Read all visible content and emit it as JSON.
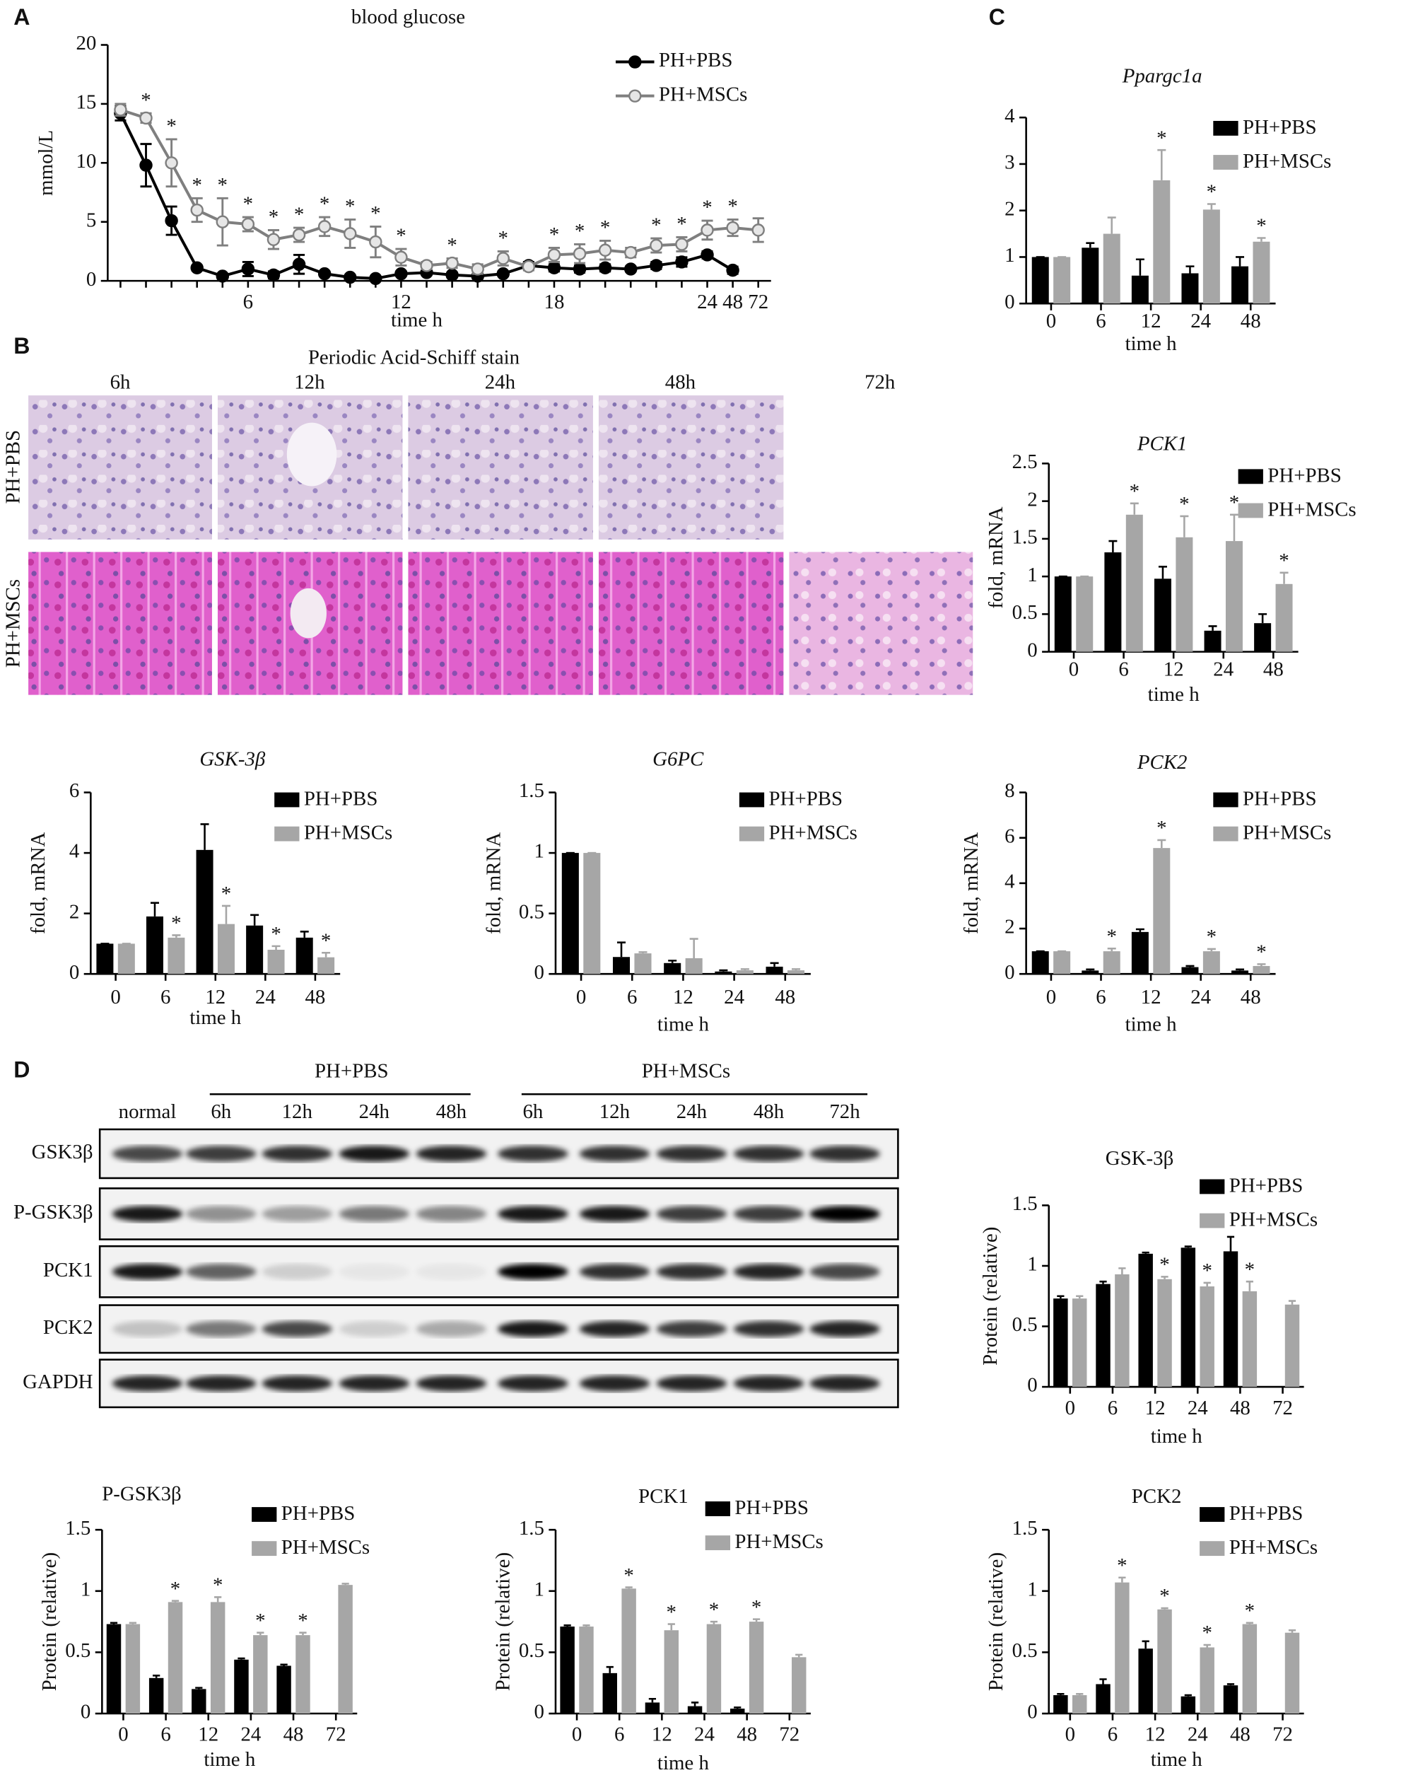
{
  "figure": {
    "panel_labels": [
      "A",
      "B",
      "C",
      "D"
    ],
    "pas": {
      "title": "Periodic Acid-Schiff stain",
      "times": [
        "6h",
        "12h",
        "24h",
        "48h",
        "72h"
      ],
      "rows": [
        "PH+PBS",
        "PH+MSCs"
      ]
    },
    "blot": {
      "groups": [
        "PH+PBS",
        "PH+MSCs"
      ],
      "lanes": [
        "normal",
        "6h",
        "12h",
        "24h",
        "48h",
        "6h",
        "12h",
        "24h",
        "48h",
        "72h"
      ],
      "rows": [
        "GSK3β",
        "P-GSK3β",
        "PCK1",
        "PCK2",
        "GAPDH"
      ]
    }
  },
  "chart_data": [
    {
      "type": "line",
      "title": "blood glucose",
      "ylabel": "mmol/L",
      "xlabel": "time h",
      "legend": "upper right",
      "categories": [
        null,
        null,
        null,
        null,
        null,
        6,
        null,
        null,
        null,
        null,
        null,
        12,
        null,
        null,
        null,
        null,
        null,
        18,
        null,
        null,
        null,
        null,
        null,
        24,
        48,
        72
      ],
      "ylim": [
        0,
        20
      ],
      "yticks": [
        0,
        5,
        10,
        15,
        20
      ],
      "series": [
        {
          "name": "PH+PBS",
          "color": "#000000",
          "marker": "filled",
          "values": [
            14.2,
            9.8,
            5.1,
            1.1,
            0.4,
            1.0,
            0.5,
            1.4,
            0.6,
            0.3,
            0.2,
            0.6,
            0.7,
            0.5,
            0.4,
            0.6,
            1.3,
            1.1,
            1.0,
            1.1,
            1.0,
            1.3,
            1.6,
            2.2,
            0.9,
            null
          ],
          "errors": [
            0.6,
            1.8,
            1.2,
            0.2,
            0.2,
            0.6,
            0.3,
            0.8,
            0.2,
            0.2,
            0.1,
            0.2,
            0.2,
            0.2,
            0.2,
            0.2,
            0.3,
            0.3,
            0.3,
            0.3,
            0.2,
            0.3,
            0.4,
            0.3,
            0.3,
            null
          ]
        },
        {
          "name": "PH+MSCs",
          "color": "#7f7f7f",
          "marker": "open",
          "values": [
            14.5,
            13.8,
            10.0,
            6.0,
            5.0,
            4.8,
            3.5,
            3.9,
            4.6,
            4.0,
            3.3,
            2.0,
            1.3,
            1.5,
            1.0,
            1.9,
            1.2,
            2.2,
            2.3,
            2.6,
            2.4,
            3.0,
            3.1,
            4.3,
            4.5,
            4.3
          ],
          "errors": [
            0.5,
            0.4,
            2.0,
            1.0,
            2.0,
            0.6,
            0.8,
            0.6,
            0.8,
            1.2,
            1.3,
            0.7,
            0.3,
            0.4,
            0.4,
            0.6,
            0.3,
            0.6,
            0.8,
            0.8,
            0.4,
            0.6,
            0.6,
            0.8,
            0.7,
            1.0
          ],
          "significance": [
            null,
            "*",
            "*",
            "*",
            "*",
            "*",
            "*",
            "*",
            "*",
            "*",
            "*",
            "*",
            null,
            "*",
            null,
            "*",
            null,
            "*",
            "*",
            "*",
            null,
            "*",
            "*",
            "*",
            "*",
            null
          ]
        }
      ]
    },
    {
      "type": "bar",
      "title": "Ppargc1a",
      "italic_title": true,
      "xlabel": "time h",
      "legend": "upper right",
      "categories": [
        0,
        6,
        12,
        24,
        48
      ],
      "ylim": [
        0,
        4
      ],
      "yticks": [
        0,
        1,
        2,
        3,
        4
      ],
      "series": [
        {
          "name": "PH+PBS",
          "color": "#000000",
          "values": [
            1,
            1.2,
            0.6,
            0.65,
            0.8
          ],
          "errors": [
            0,
            0.1,
            0.35,
            0.15,
            0.2
          ]
        },
        {
          "name": "PH+MSCs",
          "color": "#a6a6a6",
          "values": [
            1,
            1.5,
            2.65,
            2.02,
            1.33
          ],
          "errors": [
            0,
            0.35,
            0.65,
            0.12,
            0.08
          ],
          "significance": [
            null,
            null,
            "*",
            "*",
            "*"
          ]
        }
      ]
    },
    {
      "type": "bar",
      "title": "PCK1",
      "italic_title": true,
      "ylabel": "fold, mRNA",
      "xlabel": "time h",
      "legend": "upper right",
      "categories": [
        0,
        6,
        12,
        24,
        48
      ],
      "ylim": [
        0,
        2.5
      ],
      "yticks": [
        0,
        0.5,
        1,
        1.5,
        2,
        2.5
      ],
      "series": [
        {
          "name": "PH+PBS",
          "color": "#000000",
          "values": [
            1,
            1.32,
            0.97,
            0.28,
            0.38
          ],
          "errors": [
            0,
            0.15,
            0.16,
            0.06,
            0.12
          ]
        },
        {
          "name": "PH+MSCs",
          "color": "#a6a6a6",
          "values": [
            1,
            1.82,
            1.52,
            1.47,
            0.9
          ],
          "errors": [
            0,
            0.15,
            0.28,
            0.35,
            0.15
          ],
          "significance": [
            null,
            "*",
            "*",
            "*",
            "*"
          ]
        }
      ]
    },
    {
      "type": "bar",
      "title": "GSK-3β",
      "italic_title": true,
      "ylabel": "fold, mRNA",
      "xlabel": "time h",
      "legend": "upper right",
      "categories": [
        0,
        6,
        12,
        24,
        48
      ],
      "ylim": [
        0,
        6
      ],
      "yticks": [
        0,
        2,
        4,
        6
      ],
      "series": [
        {
          "name": "PH+PBS",
          "color": "#000000",
          "values": [
            1,
            1.9,
            4.1,
            1.6,
            1.2
          ],
          "errors": [
            0,
            0.45,
            0.85,
            0.35,
            0.2
          ]
        },
        {
          "name": "PH+MSCs",
          "color": "#a6a6a6",
          "values": [
            1,
            1.2,
            1.65,
            0.8,
            0.55
          ],
          "errors": [
            0,
            0.08,
            0.6,
            0.12,
            0.15
          ],
          "significance": [
            null,
            "*",
            "*",
            "*",
            "*"
          ]
        }
      ]
    },
    {
      "type": "bar",
      "title": "G6PC",
      "italic_title": true,
      "ylabel": "fold, mRNA",
      "xlabel": "time h",
      "legend": "upper right",
      "categories": [
        0,
        6,
        12,
        24,
        48
      ],
      "ylim": [
        0,
        1.5
      ],
      "yticks": [
        0,
        0.5,
        1,
        1.5
      ],
      "series": [
        {
          "name": "PH+PBS",
          "color": "#000000",
          "values": [
            1,
            0.14,
            0.09,
            0.02,
            0.06
          ],
          "errors": [
            0,
            0.12,
            0.02,
            0.01,
            0.03
          ]
        },
        {
          "name": "PH+MSCs",
          "color": "#a6a6a6",
          "values": [
            1,
            0.17,
            0.13,
            0.03,
            0.03
          ],
          "errors": [
            0,
            0.01,
            0.16,
            0.01,
            0.01
          ]
        }
      ]
    },
    {
      "type": "bar",
      "title": "PCK2",
      "italic_title": true,
      "ylabel": "fold, mRNA",
      "xlabel": "time h",
      "legend": "upper right",
      "categories": [
        0,
        6,
        12,
        24,
        48
      ],
      "ylim": [
        0,
        8
      ],
      "yticks": [
        0,
        2,
        4,
        6,
        8
      ],
      "series": [
        {
          "name": "PH+PBS",
          "color": "#000000",
          "values": [
            1,
            0.15,
            1.85,
            0.3,
            0.15
          ],
          "errors": [
            0,
            0.05,
            0.12,
            0.05,
            0.05
          ]
        },
        {
          "name": "PH+MSCs",
          "color": "#a6a6a6",
          "values": [
            1,
            1.0,
            5.55,
            1.0,
            0.35
          ],
          "errors": [
            0,
            0.12,
            0.35,
            0.1,
            0.08
          ],
          "significance": [
            null,
            "*",
            "*",
            "*",
            "*"
          ]
        }
      ]
    },
    {
      "type": "bar",
      "title": "GSK-3β",
      "ylabel": "Protein (relative)",
      "xlabel": "time h",
      "legend": "upper right",
      "categories": [
        0,
        6,
        12,
        24,
        48,
        72
      ],
      "ylim": [
        0,
        1.5
      ],
      "yticks": [
        0,
        0.5,
        1,
        1.5
      ],
      "series": [
        {
          "name": "PH+PBS",
          "color": "#000000",
          "values": [
            0.73,
            0.85,
            1.1,
            1.15,
            1.12,
            null
          ],
          "errors": [
            0.02,
            0.02,
            0.01,
            0.01,
            0.12,
            null
          ]
        },
        {
          "name": "PH+MSCs",
          "color": "#a6a6a6",
          "values": [
            0.73,
            0.93,
            0.89,
            0.83,
            0.79,
            0.68
          ],
          "errors": [
            0.02,
            0.05,
            0.02,
            0.03,
            0.08,
            0.03
          ],
          "significance": [
            null,
            null,
            "*",
            "*",
            "*",
            null
          ]
        }
      ]
    },
    {
      "type": "bar",
      "title": "P-GSK3β",
      "ylabel": "Protein (relative)",
      "xlabel": "time h",
      "legend": "upper right",
      "categories": [
        0,
        6,
        12,
        24,
        48,
        72
      ],
      "ylim": [
        0,
        1.5
      ],
      "yticks": [
        0,
        0.5,
        1,
        1.5
      ],
      "series": [
        {
          "name": "PH+PBS",
          "color": "#000000",
          "values": [
            0.73,
            0.29,
            0.2,
            0.44,
            0.39,
            null
          ],
          "errors": [
            0.01,
            0.02,
            0.01,
            0.01,
            0.01,
            null
          ]
        },
        {
          "name": "PH+MSCs",
          "color": "#a6a6a6",
          "values": [
            0.73,
            0.91,
            0.91,
            0.64,
            0.64,
            1.05
          ],
          "errors": [
            0.01,
            0.01,
            0.04,
            0.02,
            0.02,
            0.01
          ],
          "significance": [
            null,
            "*",
            "*",
            "*",
            "*",
            null
          ]
        }
      ]
    },
    {
      "type": "bar",
      "title": "PCK1",
      "ylabel": "Protein (relative)",
      "xlabel": "time h",
      "legend": "upper right",
      "categories": [
        0,
        6,
        12,
        24,
        48,
        72
      ],
      "ylim": [
        0,
        1.5
      ],
      "yticks": [
        0,
        0.5,
        1,
        1.5
      ],
      "series": [
        {
          "name": "PH+PBS",
          "color": "#000000",
          "values": [
            0.71,
            0.33,
            0.09,
            0.06,
            0.04,
            null
          ],
          "errors": [
            0.01,
            0.05,
            0.03,
            0.03,
            0.01,
            null
          ]
        },
        {
          "name": "PH+MSCs",
          "color": "#a6a6a6",
          "values": [
            0.71,
            1.02,
            0.68,
            0.73,
            0.75,
            0.46
          ],
          "errors": [
            0.01,
            0.01,
            0.05,
            0.02,
            0.02,
            0.02
          ],
          "significance": [
            null,
            "*",
            "*",
            "*",
            "*",
            null
          ]
        }
      ]
    },
    {
      "type": "bar",
      "title": "PCK2",
      "ylabel": "Protein (relative)",
      "xlabel": "time h",
      "legend": "upper right",
      "categories": [
        0,
        6,
        12,
        24,
        48,
        72
      ],
      "ylim": [
        0,
        1.5
      ],
      "yticks": [
        0,
        0.5,
        1,
        1.5
      ],
      "series": [
        {
          "name": "PH+PBS",
          "color": "#000000",
          "values": [
            0.15,
            0.24,
            0.53,
            0.14,
            0.23,
            null
          ],
          "errors": [
            0.01,
            0.04,
            0.06,
            0.01,
            0.01,
            null
          ]
        },
        {
          "name": "PH+MSCs",
          "color": "#a6a6a6",
          "values": [
            0.15,
            1.07,
            0.85,
            0.54,
            0.73,
            0.66
          ],
          "errors": [
            0.01,
            0.04,
            0.01,
            0.02,
            0.01,
            0.02
          ],
          "significance": [
            null,
            "*",
            "*",
            "*",
            "*",
            null
          ]
        }
      ]
    }
  ]
}
